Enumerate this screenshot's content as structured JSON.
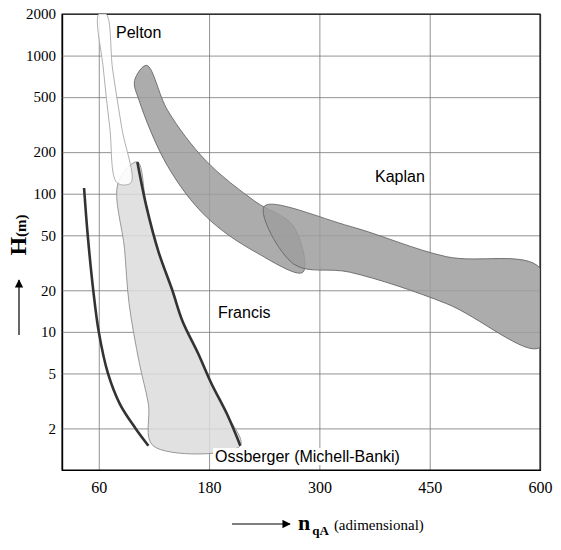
{
  "chart_data": {
    "type": "area",
    "xlabel": "n qA (adimensional)",
    "ylabel": "H(m)",
    "xlim": [
      20,
      600
    ],
    "xticks": [
      60,
      180,
      300,
      450,
      600
    ],
    "ylim": [
      1,
      2000
    ],
    "yticks": [
      2,
      5,
      10,
      20,
      50,
      100,
      200,
      500,
      1000,
      2000
    ],
    "log": "y",
    "grid": true,
    "series": [
      {
        "name": "Ossberger (Michell-Banki)",
        "type": "area",
        "color": "#dcdcdc",
        "x": [
          81,
          88,
          93,
          104,
          114,
          119,
          214,
          200,
          182,
          168,
          151,
          140,
          125,
          112,
          102
        ],
        "values": [
          120,
          40,
          16,
          6,
          3,
          1.5,
          1.5,
          2.5,
          4.3,
          7,
          12,
          20,
          38,
          80,
          170
        ]
      },
      {
        "name": "Francis",
        "type": "area",
        "color": "#9e9e9e",
        "x": [
          112,
          135,
          177,
          230,
          272,
          282,
          230,
          177,
          135,
          104,
          99
        ],
        "values": [
          850,
          400,
          172,
          88,
          58,
          27,
          38,
          68,
          158,
          471,
          660
        ]
      },
      {
        "name": "Kaplan",
        "type": "area",
        "color": "#9e9e9e",
        "x": [
          240,
          342,
          473,
          600,
          600,
          473,
          342,
          272
        ],
        "values": [
          81,
          58,
          35,
          29,
          7.7,
          16,
          27,
          31
        ]
      },
      {
        "type": "line",
        "color": "#333333",
        "x": [
          44,
          48,
          54,
          60,
          70,
          83,
          100,
          114
        ],
        "values": [
          110,
          50,
          20,
          10,
          5,
          3,
          2,
          1.5
        ]
      },
      {
        "type": "line",
        "color": "#333333",
        "x": [
          102,
          112,
          125,
          140,
          151,
          168,
          182,
          200,
          214
        ],
        "values": [
          170,
          80,
          38,
          20,
          12,
          7,
          4.3,
          2.5,
          1.5
        ]
      },
      {
        "name": "Pelton",
        "type": "area",
        "color": "#ffffff",
        "x": [
          60,
          65,
          72,
          80,
          95,
          85,
          75,
          68
        ],
        "values": [
          2000,
          800,
          300,
          120,
          120,
          300,
          800,
          2000
        ]
      }
    ]
  }
}
